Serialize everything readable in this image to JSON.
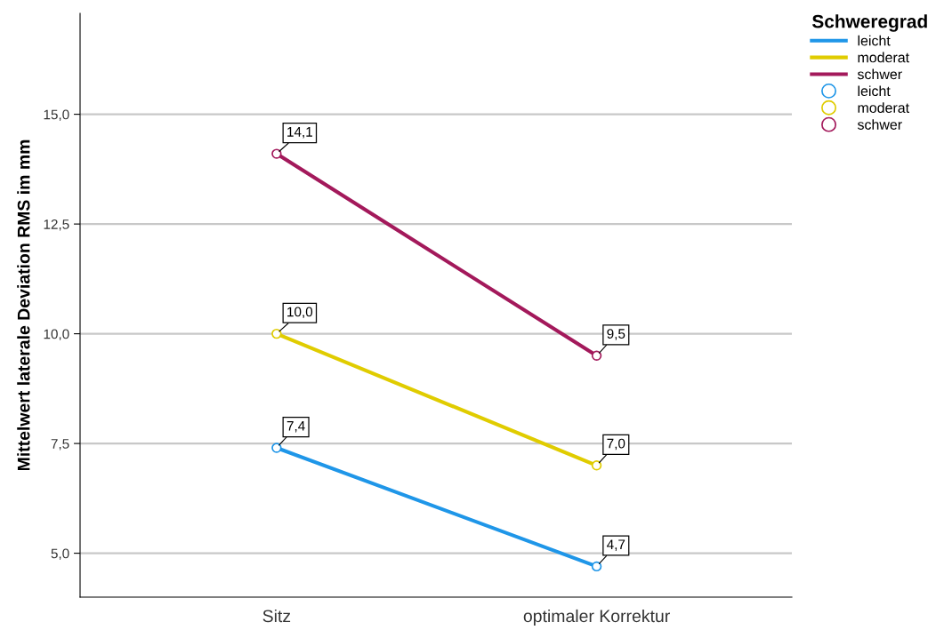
{
  "chart_data": {
    "type": "line",
    "ylabel": "Mittelwert laterale Deviation RMS im mm",
    "legend_title": "Schweregrad",
    "legend": "top right",
    "grid": "y",
    "marker": "circle",
    "line_style": "solid",
    "categories": [
      "Sitz",
      "optimaler Korrektur"
    ],
    "series": [
      {
        "name": "leicht",
        "color": "#1f96e8",
        "values": [
          7.4,
          4.7
        ],
        "value_labels": [
          "7,4",
          "4,7"
        ]
      },
      {
        "name": "moderat",
        "color": "#e0cc00",
        "values": [
          10.0,
          7.0
        ],
        "value_labels": [
          "10,0",
          "7,0"
        ]
      },
      {
        "name": "schwer",
        "color": "#a3195b",
        "values": [
          14.1,
          9.5
        ],
        "value_labels": [
          "14,1",
          "9,5"
        ]
      }
    ],
    "ylim": [
      4.0,
      17.3
    ],
    "yticks": [
      {
        "value": 5,
        "label": "5,0"
      },
      {
        "value": 7.5,
        "label": "7,5"
      },
      {
        "value": 10,
        "label": "10,0"
      },
      {
        "value": 12.5,
        "label": "12,5"
      },
      {
        "value": 15,
        "label": "15,0"
      }
    ]
  }
}
